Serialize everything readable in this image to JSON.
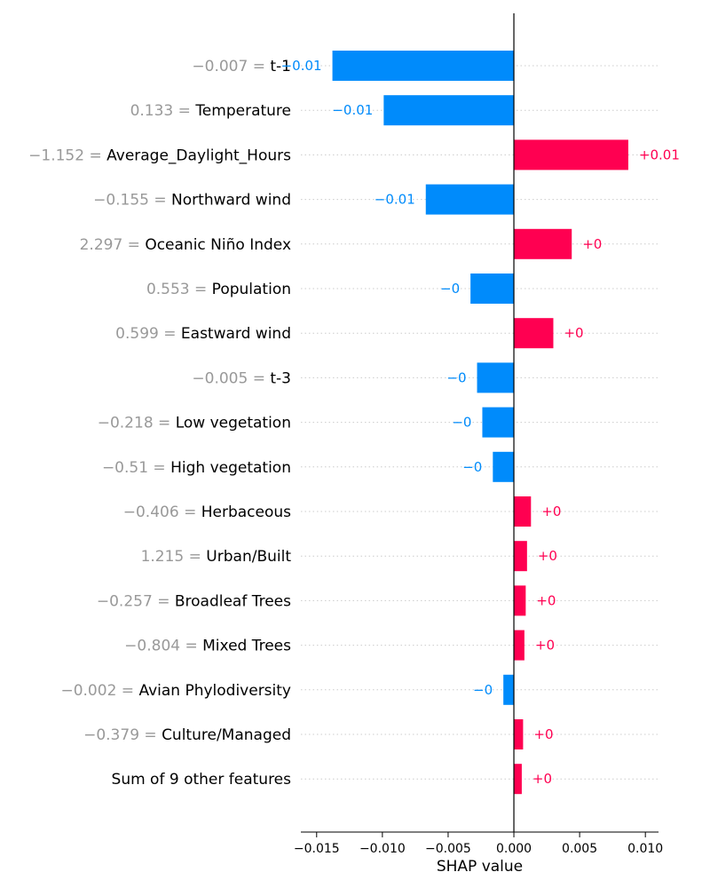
{
  "chart_data": {
    "type": "bar",
    "orientation": "horizontal",
    "xlabel": "SHAP value",
    "xlim": [
      -0.0162,
      0.011
    ],
    "xticks": [
      -0.015,
      -0.01,
      -0.005,
      0.0,
      0.005,
      0.01
    ],
    "xtick_labels": [
      "−0.015",
      "−0.010",
      "−0.005",
      "0.000",
      "0.005",
      "0.010"
    ],
    "grid": "dotted horizontal row guides",
    "colors": {
      "positive": "#ff0051",
      "negative": "#008bfb",
      "feature_value": "#999999",
      "axis": "#333333"
    },
    "features": [
      {
        "value": "−0.007 =",
        "name": "t-1",
        "shap": -0.0138,
        "label": "−0.01"
      },
      {
        "value": "0.133 =",
        "name": "Temperature",
        "shap": -0.0099,
        "label": "−0.01"
      },
      {
        "value": "−1.152 =",
        "name": "Average_Daylight_Hours",
        "shap": 0.0087,
        "label": "+0.01"
      },
      {
        "value": "−0.155 =",
        "name": "Northward wind",
        "shap": -0.0067,
        "label": "−0.01"
      },
      {
        "value": "2.297 =",
        "name": "Oceanic Niño Index",
        "shap": 0.0044,
        "label": "+0"
      },
      {
        "value": "0.553 =",
        "name": "Population",
        "shap": -0.0033,
        "label": "−0"
      },
      {
        "value": "0.599 =",
        "name": "Eastward wind",
        "shap": 0.003,
        "label": "+0"
      },
      {
        "value": "−0.005 =",
        "name": "t-3",
        "shap": -0.0028,
        "label": "−0"
      },
      {
        "value": "−0.218 =",
        "name": "Low vegetation",
        "shap": -0.0024,
        "label": "−0"
      },
      {
        "value": "−0.51 =",
        "name": "High vegetation",
        "shap": -0.0016,
        "label": "−0"
      },
      {
        "value": "−0.406 =",
        "name": "Herbaceous",
        "shap": 0.0013,
        "label": "+0"
      },
      {
        "value": "1.215 =",
        "name": "Urban/Built",
        "shap": 0.001,
        "label": "+0"
      },
      {
        "value": "−0.257 =",
        "name": "Broadleaf Trees",
        "shap": 0.0009,
        "label": "+0"
      },
      {
        "value": "−0.804 =",
        "name": "Mixed Trees",
        "shap": 0.0008,
        "label": "+0"
      },
      {
        "value": "−0.002 =",
        "name": "Avian Phylodiversity",
        "shap": -0.0008,
        "label": "−0"
      },
      {
        "value": "−0.379 =",
        "name": "Culture/Managed",
        "shap": 0.0007,
        "label": "+0"
      },
      {
        "value": "",
        "name": "Sum of 9 other features",
        "shap": 0.0006,
        "label": "+0"
      }
    ]
  }
}
